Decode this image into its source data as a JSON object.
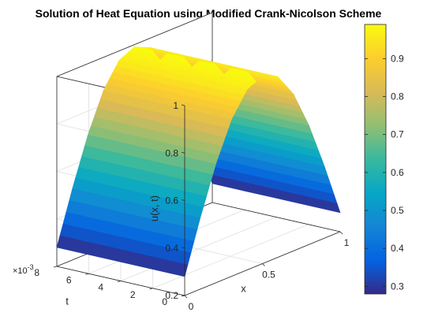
{
  "chart_data": {
    "type": "surface",
    "title": "Solution of Heat Equation using Modified Crank-Nicolson Scheme",
    "xlabel": "x",
    "ylabel": "t",
    "zlabel": "u(x, t)",
    "xlim": [
      0,
      1
    ],
    "ylim": [
      0,
      0.008
    ],
    "zlim": [
      0.2,
      1
    ],
    "x_ticks": [
      "0",
      "0.5",
      "1"
    ],
    "y_ticks": [
      "0",
      "2",
      "4",
      "6",
      "8"
    ],
    "y_exponent_label": "×10",
    "y_exponent_power": "-3",
    "z_ticks": [
      "0.2",
      "0.4",
      "0.6",
      "0.8",
      "1"
    ],
    "colorbar": {
      "ticks": [
        "0.3",
        "0.4",
        "0.5",
        "0.6",
        "0.7",
        "0.8",
        "0.9"
      ],
      "range": [
        0.28,
        0.99
      ],
      "colormap": "parula"
    },
    "surface": {
      "function": "u(x,t) = 0.3 + 0.7*sin(pi*x), approximately constant in t",
      "x": [
        0,
        0.1,
        0.2,
        0.3,
        0.4,
        0.5,
        0.6,
        0.7,
        0.8,
        0.9,
        1.0
      ],
      "u_at_t0": [
        0.28,
        0.5,
        0.7,
        0.86,
        0.96,
        0.99,
        0.96,
        0.86,
        0.7,
        0.5,
        0.28
      ]
    },
    "grid": true
  }
}
